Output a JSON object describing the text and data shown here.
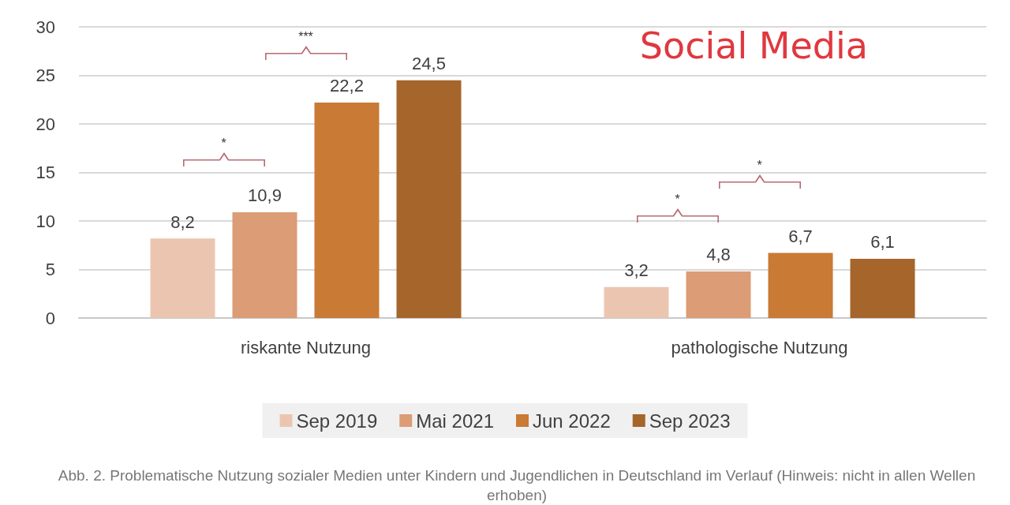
{
  "chart_data": {
    "type": "bar",
    "title": "Social Media",
    "categories": [
      "riskante Nutzung",
      "pathologische Nutzung"
    ],
    "series": [
      {
        "name": "Sep 2019",
        "color": "#ecc5b1",
        "values": [
          8.2,
          3.2
        ],
        "value_labels": [
          "8,2",
          "3,2"
        ]
      },
      {
        "name": "Mai 2021",
        "color": "#dc9c75",
        "values": [
          10.9,
          4.8
        ],
        "value_labels": [
          "10,9",
          "4,8"
        ]
      },
      {
        "name": "Jun 2022",
        "color": "#c97a35",
        "values": [
          22.2,
          6.7
        ],
        "value_labels": [
          "22,2",
          "6,7"
        ]
      },
      {
        "name": "Sep 2023",
        "color": "#a5652b",
        "values": [
          24.5,
          6.1
        ],
        "value_labels": [
          "24,5",
          "6,1"
        ]
      }
    ],
    "ylim": [
      0,
      30
    ],
    "yticks": [
      0,
      5,
      10,
      15,
      20,
      25,
      30
    ],
    "grid": "y",
    "legend": "bottom",
    "annotations": [
      "*",
      "***",
      "*",
      "*",
      "Abb. 2. Problematische Nutzung sozialer Medien unter Kindern und Jugendlichen in Deutschland im Verlauf (Hinweis: nicht in allen Wellen erhoben)"
    ]
  }
}
